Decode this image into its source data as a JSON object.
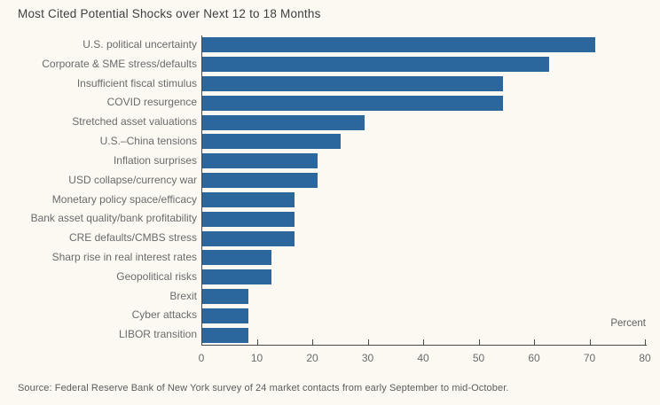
{
  "chart_data": {
    "type": "bar",
    "orientation": "horizontal",
    "title": "Most Cited Potential Shocks over Next 12 to 18 Months",
    "categories": [
      "U.S. political uncertainty",
      "Corporate & SME stress/defaults",
      "Insufficient fiscal stimulus",
      "COVID resurgence",
      "Stretched asset valuations",
      "U.S.–China tensions",
      "Inflation surprises",
      "USD collapse/currency war",
      "Monetary policy space/efficacy",
      "Bank asset quality/bank profitability",
      "CRE defaults/CMBS stress",
      "Sharp rise in real interest rates",
      "Geopolitical risks",
      "Brexit",
      "Cyber attacks",
      "LIBOR transition"
    ],
    "values": [
      70.8,
      62.5,
      54.2,
      54.2,
      29.2,
      25.0,
      20.8,
      20.8,
      16.7,
      16.7,
      16.7,
      12.5,
      12.5,
      8.3,
      8.3,
      8.3
    ],
    "xlabel": "Percent",
    "xlim": [
      0,
      80
    ],
    "xticks": [
      0,
      10,
      20,
      30,
      40,
      50,
      60,
      70,
      80
    ],
    "grid": false,
    "legend": "none",
    "bar_color": "#2b679c",
    "source": "Source: Federal Reserve Bank of New York survey of 24 market contacts from early September to mid-October."
  }
}
